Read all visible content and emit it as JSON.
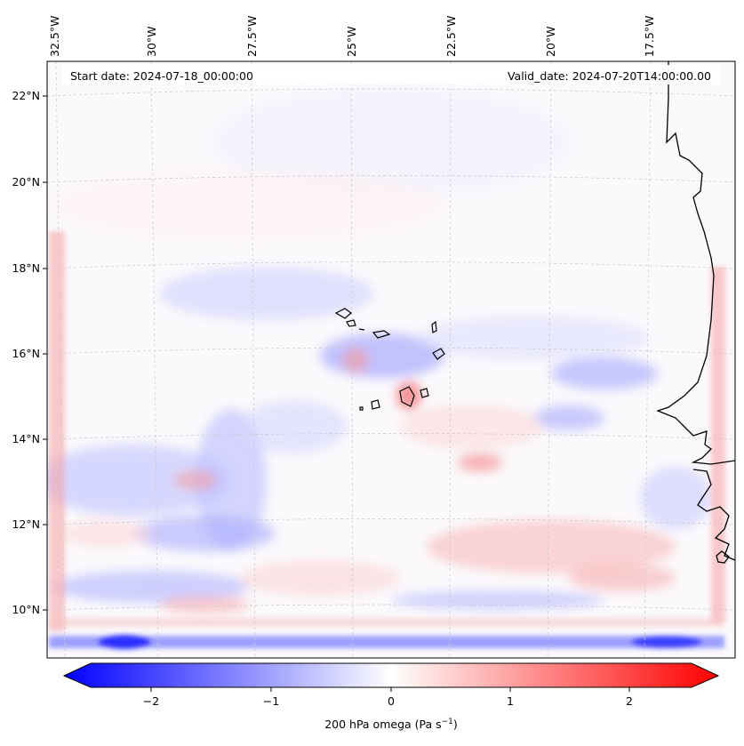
{
  "map": {
    "header_left": "Start date: 2024-07-18_00:00:00",
    "header_right": "Valid_date: 2024-07-20T14:00:00.00",
    "longitude_labels": [
      "32.5°W",
      "30°W",
      "27.5°W",
      "25°W",
      "22.5°W",
      "20°W",
      "17.5°W"
    ],
    "latitude_labels": [
      "22°N",
      "20°N",
      "18°N",
      "16°N",
      "14°N",
      "12°N",
      "10°N"
    ],
    "field_colors": {
      "negative": "#0000ff",
      "zero": "#ffffff",
      "positive": "#ff0000"
    }
  },
  "colorbar": {
    "ticks": [
      "−2",
      "−1",
      "0",
      "1",
      "2"
    ],
    "tick_values": [
      -2,
      -1,
      0,
      1,
      2
    ],
    "range": [
      -2.5,
      2.5
    ],
    "label_prefix": "200 hPa omega (Pa s",
    "label_exp": "−1",
    "label_suffix": ")"
  }
}
